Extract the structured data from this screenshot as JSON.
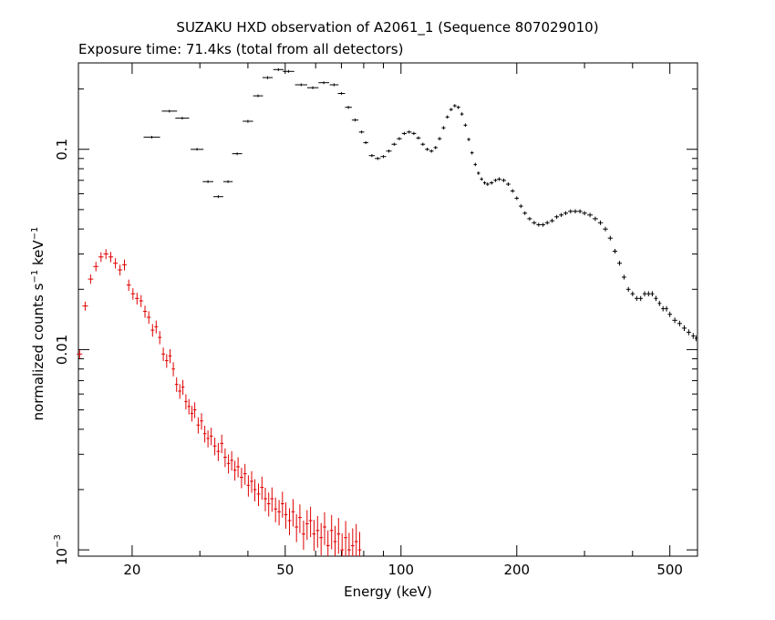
{
  "chart_data": {
    "type": "scatter",
    "title": "SUZAKU HXD observation of A2061_1 (Sequence 807029010)",
    "subtitle": "Exposure time: 71.4ks (total from all detectors)",
    "xlabel": "Energy (keV)",
    "ylabel_parts": {
      "prefix": "normalized counts s",
      "exp1": "−1",
      "middle": " keV",
      "exp2": "−1"
    },
    "x_scale": "log",
    "y_scale": "log",
    "xlim": [
      14.5,
      590
    ],
    "ylim": [
      0.00093,
      0.27
    ],
    "x_ticks": [
      {
        "value": 20,
        "label": "20"
      },
      {
        "value": 50,
        "label": "50"
      },
      {
        "value": 100,
        "label": "100"
      },
      {
        "value": 200,
        "label": "200"
      },
      {
        "value": 500,
        "label": "500"
      }
    ],
    "y_ticks": [
      {
        "value": 0.001,
        "label": "10",
        "exp": "−3"
      },
      {
        "value": 0.01,
        "label": "0.01"
      },
      {
        "value": 0.1,
        "label": "0.1"
      }
    ],
    "grid": false,
    "legend": "none",
    "colors": {
      "axes": "#000000",
      "gso": "#000000",
      "pin": "#e00000"
    },
    "series": [
      {
        "color": "#000000",
        "x": [
          22.5,
          25,
          27,
          29.5,
          31.5,
          33.5,
          35.5,
          37.5,
          40,
          42.5,
          45,
          48,
          51,
          55,
          59,
          63,
          67,
          70,
          73,
          76,
          79,
          81,
          84,
          87,
          90,
          93,
          96,
          99,
          102,
          105,
          108,
          111,
          114,
          117,
          120,
          123,
          126,
          129,
          132,
          135,
          138,
          141,
          144,
          147,
          150,
          153,
          156,
          159,
          162,
          165,
          168,
          172,
          176,
          180,
          185,
          190,
          195,
          200,
          205,
          210,
          216,
          222,
          228,
          234,
          240,
          247,
          254,
          261,
          268,
          276,
          284,
          292,
          300,
          310,
          320,
          330,
          340,
          350,
          360,
          370,
          380,
          390,
          400,
          410,
          420,
          430,
          440,
          450,
          460,
          470,
          480,
          490,
          500,
          515,
          530,
          545,
          560,
          575,
          585
        ],
        "y": [
          0.115,
          0.155,
          0.143,
          0.1,
          0.069,
          0.058,
          0.069,
          0.095,
          0.138,
          0.185,
          0.228,
          0.25,
          0.245,
          0.21,
          0.203,
          0.215,
          0.21,
          0.19,
          0.162,
          0.14,
          0.122,
          0.108,
          0.093,
          0.09,
          0.092,
          0.098,
          0.106,
          0.113,
          0.12,
          0.122,
          0.12,
          0.114,
          0.106,
          0.1,
          0.098,
          0.102,
          0.113,
          0.128,
          0.145,
          0.158,
          0.165,
          0.162,
          0.15,
          0.132,
          0.112,
          0.096,
          0.084,
          0.076,
          0.071,
          0.068,
          0.067,
          0.068,
          0.07,
          0.071,
          0.07,
          0.067,
          0.062,
          0.057,
          0.052,
          0.048,
          0.045,
          0.043,
          0.042,
          0.042,
          0.043,
          0.044,
          0.046,
          0.047,
          0.048,
          0.049,
          0.049,
          0.049,
          0.048,
          0.047,
          0.045,
          0.043,
          0.04,
          0.036,
          0.031,
          0.027,
          0.023,
          0.02,
          0.019,
          0.018,
          0.018,
          0.019,
          0.019,
          0.019,
          0.018,
          0.017,
          0.016,
          0.016,
          0.015,
          0.014,
          0.0135,
          0.0128,
          0.0122,
          0.0117,
          0.0114
        ]
      },
      {
        "color": "#e00000",
        "x": [
          14.6,
          15.1,
          15.6,
          16.1,
          16.6,
          17.1,
          17.6,
          18.1,
          18.6,
          19.1,
          19.6,
          20.1,
          20.6,
          21.1,
          21.6,
          22.1,
          22.6,
          23.1,
          23.6,
          24.1,
          24.6,
          25.1,
          25.6,
          26.1,
          26.6,
          27.1,
          27.6,
          28.1,
          28.6,
          29.1,
          29.7,
          30.3,
          30.9,
          31.5,
          32.1,
          32.8,
          33.5,
          34.2,
          34.9,
          35.6,
          36.3,
          37,
          37.7,
          38.5,
          39.3,
          40.1,
          40.9,
          41.7,
          42.6,
          43.5,
          44.4,
          45.3,
          46.2,
          47.2,
          48.2,
          49.2,
          50.2,
          51.3,
          52.4,
          53.5,
          54.6,
          55.8,
          57,
          58.2,
          59.4,
          60.7,
          62,
          63.3,
          64.6,
          66,
          67.4,
          68.8,
          70.3,
          71.8,
          73.3,
          74.9,
          76.5,
          78.1
        ],
        "y": [
          0.0095,
          0.0165,
          0.0225,
          0.026,
          0.029,
          0.03,
          0.029,
          0.027,
          0.025,
          0.0265,
          0.021,
          0.019,
          0.018,
          0.0175,
          0.0155,
          0.0145,
          0.0125,
          0.013,
          0.0115,
          0.0095,
          0.0088,
          0.0093,
          0.008,
          0.0067,
          0.0062,
          0.0065,
          0.0055,
          0.0052,
          0.0048,
          0.005,
          0.0042,
          0.0044,
          0.0038,
          0.0036,
          0.0037,
          0.0033,
          0.0031,
          0.0034,
          0.0029,
          0.0027,
          0.0028,
          0.0025,
          0.0026,
          0.0023,
          0.0024,
          0.0021,
          0.0022,
          0.002,
          0.0019,
          0.00205,
          0.0018,
          0.0017,
          0.0018,
          0.0016,
          0.00155,
          0.0017,
          0.0015,
          0.0014,
          0.00155,
          0.0013,
          0.00145,
          0.0012,
          0.00135,
          0.0014,
          0.0012,
          0.00125,
          0.00115,
          0.0013,
          0.00105,
          0.00125,
          0.0011,
          0.0012,
          0.001,
          0.00115,
          0.001,
          0.00105,
          0.0011,
          0.001
        ]
      }
    ]
  }
}
